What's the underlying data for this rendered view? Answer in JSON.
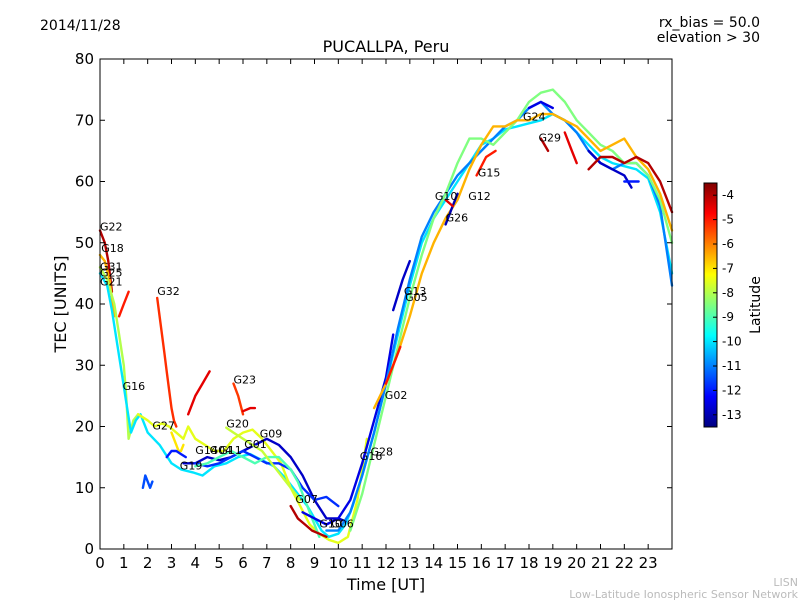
{
  "header": {
    "date": "2014/11/28",
    "rx_bias": "rx_bias = 50.0",
    "elevation": "elevation > 30"
  },
  "footer": {
    "line1": "LISN",
    "line2": "Low-Latitude Ionospheric Sensor Network"
  },
  "chart_data": {
    "type": "line",
    "title": "PUCALLPA, Peru",
    "xlabel": "Time [UT]",
    "ylabel": "TEC [UNITS]",
    "xlim": [
      0,
      24
    ],
    "ylim": [
      0,
      80
    ],
    "x_ticks": [
      "0",
      "1",
      "2",
      "3",
      "4",
      "5",
      "6",
      "7",
      "8",
      "9",
      "10",
      "11",
      "12",
      "13",
      "14",
      "15",
      "16",
      "17",
      "18",
      "19",
      "20",
      "21",
      "22",
      "23"
    ],
    "y_ticks": [
      "0",
      "10",
      "20",
      "30",
      "40",
      "50",
      "60",
      "70",
      "80"
    ],
    "colorbar": {
      "label": "Latitude",
      "range": [
        -13.5,
        -3.5
      ],
      "ticks": [
        "-4",
        "-5",
        "-6",
        "-7",
        "-8",
        "-9",
        "-10",
        "-11",
        "-12",
        "-13"
      ],
      "colormap": "jet"
    },
    "prn_labels": [
      {
        "text": "G22",
        "x": 0.0,
        "y": 52
      },
      {
        "text": "G18",
        "x": 0.05,
        "y": 48.5
      },
      {
        "text": "G31",
        "x": 0.0,
        "y": 45.5
      },
      {
        "text": "G25",
        "x": 0.0,
        "y": 44.5
      },
      {
        "text": "G21",
        "x": 0.0,
        "y": 43
      },
      {
        "text": "G16",
        "x": 0.95,
        "y": 26
      },
      {
        "text": "G32",
        "x": 2.4,
        "y": 41.5
      },
      {
        "text": "G27",
        "x": 2.2,
        "y": 19.5
      },
      {
        "text": "G19",
        "x": 3.35,
        "y": 13
      },
      {
        "text": "G14",
        "x": 4.0,
        "y": 15.5
      },
      {
        "text": "G04",
        "x": 4.6,
        "y": 15.5
      },
      {
        "text": "G11",
        "x": 5.0,
        "y": 15.5
      },
      {
        "text": "G01",
        "x": 6.05,
        "y": 16.5
      },
      {
        "text": "G23",
        "x": 5.6,
        "y": 27
      },
      {
        "text": "G20",
        "x": 5.3,
        "y": 19.8
      },
      {
        "text": "G09",
        "x": 6.7,
        "y": 18.2
      },
      {
        "text": "G07",
        "x": 8.2,
        "y": 7.5
      },
      {
        "text": "G10",
        "x": 9.2,
        "y": 3.5
      },
      {
        "text": "G06",
        "x": 9.7,
        "y": 3.5
      },
      {
        "text": "G16",
        "x": 10.9,
        "y": 14.5
      },
      {
        "text": "G28",
        "x": 11.35,
        "y": 15.3
      },
      {
        "text": "G02",
        "x": 11.95,
        "y": 24.5
      },
      {
        "text": "G13",
        "x": 12.75,
        "y": 41.5
      },
      {
        "text": "G05",
        "x": 12.8,
        "y": 40.5
      },
      {
        "text": "G10",
        "x": 14.05,
        "y": 57
      },
      {
        "text": "G12",
        "x": 15.45,
        "y": 57
      },
      {
        "text": "G26",
        "x": 14.5,
        "y": 53.5
      },
      {
        "text": "G15",
        "x": 15.85,
        "y": 60.8
      },
      {
        "text": "G24",
        "x": 17.75,
        "y": 70
      },
      {
        "text": "G29",
        "x": 18.4,
        "y": 66.5
      }
    ],
    "series": [
      {
        "lat": -4.0,
        "x": [
          0,
          0.2,
          0.35,
          0.5
        ],
        "y": [
          52,
          50,
          47,
          42
        ]
      },
      {
        "lat": -6.5,
        "x": [
          0,
          0.2,
          0.4,
          0.6
        ],
        "y": [
          48,
          47,
          44,
          38
        ]
      },
      {
        "lat": -5.0,
        "x": [
          0.8,
          1.0,
          1.2
        ],
        "y": [
          38,
          40,
          42
        ]
      },
      {
        "lat": -8.0,
        "x": [
          0,
          0.3,
          0.6,
          0.8,
          1.0,
          1.1,
          1.2,
          1.4,
          1.6
        ],
        "y": [
          46,
          44,
          40,
          35,
          30,
          25,
          18,
          21,
          22
        ]
      },
      {
        "lat": -10.0,
        "x": [
          0,
          0.3,
          0.5,
          0.7,
          0.9,
          1.1,
          1.3,
          1.5,
          1.7,
          2.0,
          2.5,
          3.0,
          3.4,
          3.9,
          4.3,
          4.8,
          5.3,
          5.8,
          6.3,
          6.8,
          7.3,
          7.8,
          8.3,
          8.7,
          9.0,
          9.3,
          9.6,
          10.0,
          10.3,
          10.6,
          11.0,
          11.5,
          12.0,
          12.5,
          13.0,
          13.5,
          14.0,
          14.5,
          15.0,
          15.5,
          16.0,
          16.5,
          17.0,
          17.5,
          18.0,
          18.5,
          19.0,
          19.5,
          20.0,
          20.5,
          21.0,
          21.5,
          22.0,
          22.5,
          23.0,
          23.5,
          24.0
        ],
        "y": [
          45,
          43,
          39,
          34,
          29,
          24,
          19,
          21,
          22,
          19,
          17,
          14,
          13,
          12.5,
          12,
          13.5,
          14,
          15,
          15.5,
          14.5,
          13.5,
          11.5,
          9,
          7,
          5,
          3,
          2,
          2.5,
          4,
          7,
          12,
          19,
          27,
          35,
          43,
          50,
          54,
          57,
          60,
          63,
          66,
          67,
          68.5,
          69,
          69.5,
          70,
          71,
          70,
          68,
          66,
          64,
          63,
          62.5,
          62,
          60.5,
          55,
          45
        ]
      },
      {
        "lat": -7.5,
        "x": [
          1.6,
          1.8,
          2.0,
          2.3,
          2.6,
          2.9,
          3.2,
          3.5,
          3.7,
          4.0,
          4.4,
          4.8,
          5.2,
          5.6,
          6.0,
          6.4,
          6.8,
          7.2,
          7.6,
          8.0,
          8.4,
          8.8,
          9.2,
          9.6,
          10.0,
          10.4,
          10.8,
          11.2
        ],
        "y": [
          22,
          21.5,
          21,
          20,
          20.5,
          20,
          19,
          18,
          20,
          18,
          17,
          16,
          16,
          18,
          19,
          19.5,
          18,
          16,
          14,
          10,
          7,
          4,
          2.5,
          1.5,
          1,
          2,
          8,
          18
        ]
      },
      {
        "lat": -11.5,
        "x": [
          1.8,
          1.9,
          2.0,
          2.1,
          2.2
        ],
        "y": [
          10,
          12,
          11,
          10,
          11
        ]
      },
      {
        "lat": -5.2,
        "x": [
          2.4,
          2.5,
          2.6,
          2.7,
          2.8,
          2.9,
          3.0,
          3.1,
          3.2
        ],
        "y": [
          41,
          38,
          35,
          32,
          29,
          26,
          23,
          21,
          20
        ]
      },
      {
        "lat": -7.0,
        "x": [
          3.0,
          3.2,
          3.3,
          3.4,
          3.5
        ],
        "y": [
          19,
          17,
          16,
          16,
          17
        ]
      },
      {
        "lat": -12.0,
        "x": [
          2.8,
          3.0,
          3.2,
          3.4,
          3.6
        ],
        "y": [
          15,
          16,
          16,
          15.5,
          15
        ]
      },
      {
        "lat": -4.5,
        "x": [
          3.7,
          4.0,
          4.3,
          4.6
        ],
        "y": [
          22,
          25,
          27,
          29
        ]
      },
      {
        "lat": -5.3,
        "x": [
          5.6,
          5.8,
          6.0
        ],
        "y": [
          27,
          25,
          22
        ]
      },
      {
        "lat": -4.5,
        "x": [
          6.0,
          6.3,
          6.5
        ],
        "y": [
          22.5,
          23,
          23
        ]
      },
      {
        "lat": -12.8,
        "x": [
          3.5,
          4.0,
          4.5,
          5.0,
          5.5,
          6.0,
          6.5,
          7.0,
          7.5,
          8.0,
          8.5,
          9.0,
          9.5,
          10.0,
          10.3
        ],
        "y": [
          14,
          14,
          15,
          14.5,
          15,
          16,
          17,
          18,
          17,
          15,
          12,
          8,
          5,
          5,
          4.5
        ]
      },
      {
        "lat": -11.8,
        "x": [
          4.0,
          4.5,
          5.0,
          5.5,
          6.0,
          6.5,
          7.0,
          7.5,
          8.0,
          8.5,
          9.0,
          9.5,
          10.0
        ],
        "y": [
          14,
          13.5,
          14,
          15,
          16,
          15,
          14,
          14,
          13,
          10,
          8,
          8.5,
          7
        ]
      },
      {
        "lat": -9.0,
        "x": [
          4.0,
          4.5,
          5.0,
          5.5,
          6.0,
          6.5,
          7.0,
          7.5,
          8.0,
          8.3,
          8.6,
          8.9,
          9.2
        ],
        "y": [
          13.5,
          14,
          15,
          16,
          15,
          14,
          15,
          15,
          13,
          11,
          8,
          5,
          2
        ]
      },
      {
        "lat": -7.8,
        "x": [
          5.3,
          5.6,
          6.0,
          6.4,
          6.8,
          7.2,
          7.6,
          8.0,
          8.4
        ],
        "y": [
          19.8,
          19,
          18,
          17,
          16,
          14,
          12,
          10,
          8
        ]
      },
      {
        "lat": -4.0,
        "x": [
          8.0,
          8.3,
          8.6,
          8.9,
          9.2,
          9.5
        ],
        "y": [
          7,
          5,
          4,
          3,
          2.5,
          2
        ]
      },
      {
        "lat": -12.5,
        "x": [
          8.5,
          9.0,
          9.5,
          10.0,
          10.5,
          11.0,
          11.5,
          12.0,
          12.3
        ],
        "y": [
          6,
          5,
          4,
          5,
          8,
          14,
          21,
          28,
          35
        ]
      },
      {
        "lat": -11.0,
        "x": [
          9.5,
          10.0,
          10.5,
          11.0,
          11.5,
          12.0,
          12.5,
          13.0,
          13.5,
          14.0,
          14.5,
          15.0,
          15.5,
          16.0,
          16.5,
          17.0,
          17.5,
          18.0,
          18.5,
          19.0,
          19.5,
          20.0,
          20.5,
          21.0,
          21.5,
          22.0,
          22.5,
          23.0,
          23.5,
          24.0
        ],
        "y": [
          3,
          3,
          6,
          12,
          19,
          27,
          36,
          44,
          51,
          55,
          58,
          61,
          63,
          65,
          67,
          69,
          70,
          72,
          73,
          71,
          70,
          68,
          65,
          63,
          62,
          63,
          63,
          61,
          56,
          43
        ]
      },
      {
        "lat": -8.5,
        "x": [
          10.5,
          11.0,
          11.5,
          12.0,
          12.5,
          13.0,
          13.5,
          14.0,
          14.5,
          15.0,
          15.5,
          16.0,
          16.5,
          17.0,
          17.5,
          18.0,
          18.5,
          19.0,
          19.5,
          20.0,
          20.5,
          21.0,
          21.5,
          22.0,
          22.5,
          23.0,
          23.5,
          24.0
        ],
        "y": [
          3,
          9,
          17,
          25,
          33,
          41,
          48,
          54,
          58,
          63,
          67,
          67,
          66,
          68,
          70,
          73,
          74.5,
          75,
          73,
          70,
          68,
          66,
          65,
          63,
          63,
          61,
          57,
          50
        ]
      },
      {
        "lat": -6.5,
        "x": [
          11.5,
          12.0,
          12.5,
          13.0,
          13.5,
          14.0,
          14.5,
          15.0,
          15.5,
          16.0,
          16.5,
          17.0,
          17.5,
          18.0,
          18.5,
          19.0,
          19.5,
          20.0,
          20.5,
          21.0,
          21.5,
          22.0,
          22.5,
          23.0,
          23.5,
          24.0
        ],
        "y": [
          23,
          27,
          32,
          38,
          45,
          50,
          54,
          57,
          62,
          66,
          69,
          69,
          70,
          70,
          71,
          71,
          70,
          69,
          67,
          65,
          66,
          67,
          64,
          62,
          58,
          52
        ]
      },
      {
        "lat": -5.0,
        "x": [
          12.0,
          12.3,
          12.6
        ],
        "y": [
          27,
          30,
          33
        ]
      },
      {
        "lat": -12.8,
        "x": [
          12.3,
          12.7,
          13.0
        ],
        "y": [
          39,
          44,
          47
        ]
      },
      {
        "lat": -13.0,
        "x": [
          14.5,
          14.8,
          15.0
        ],
        "y": [
          53,
          56,
          58
        ]
      },
      {
        "lat": -4.5,
        "x": [
          14.5,
          14.8
        ],
        "y": [
          57,
          56
        ]
      },
      {
        "lat": -5.0,
        "x": [
          15.8,
          16.2,
          16.6
        ],
        "y": [
          61,
          64,
          65
        ]
      },
      {
        "lat": -12.5,
        "x": [
          18.0,
          18.5,
          19.0
        ],
        "y": [
          72,
          73,
          72
        ]
      },
      {
        "lat": -4.0,
        "x": [
          18.5,
          18.8
        ],
        "y": [
          67,
          65
        ]
      },
      {
        "lat": -4.5,
        "x": [
          19.5,
          19.8,
          20.0
        ],
        "y": [
          68,
          65,
          63
        ]
      },
      {
        "lat": -12.8,
        "x": [
          20.5,
          21.0,
          21.5,
          22.0,
          22.3
        ],
        "y": [
          65,
          63,
          62,
          61,
          59
        ]
      },
      {
        "lat": -12.0,
        "x": [
          22.0,
          22.3,
          22.6
        ],
        "y": [
          60,
          60,
          60
        ]
      },
      {
        "lat": -4.0,
        "x": [
          20.5,
          21.0,
          21.5,
          22.0,
          22.5,
          23.0,
          23.5,
          24.0
        ],
        "y": [
          62,
          64,
          64,
          63,
          64,
          63,
          60,
          55
        ]
      }
    ]
  }
}
